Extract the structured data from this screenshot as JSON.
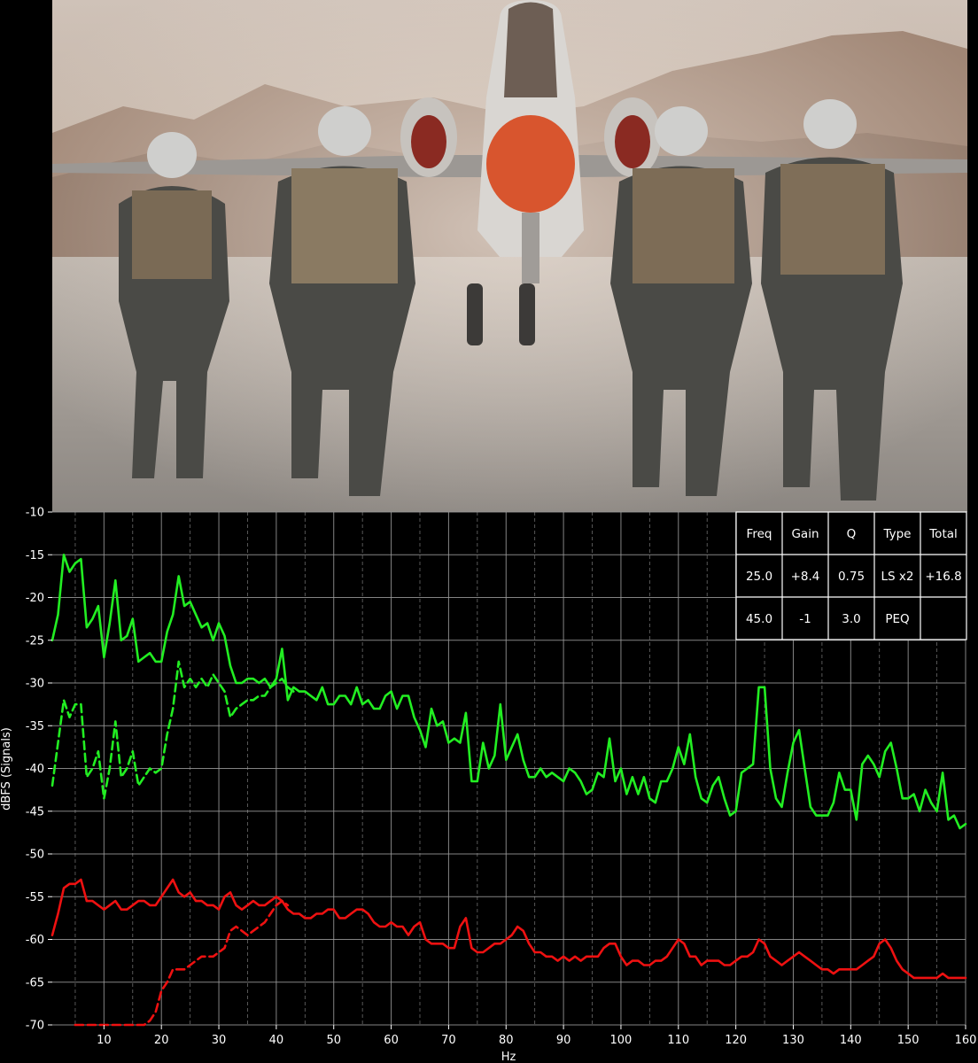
{
  "background_image": {
    "description_icon": "photo-icon"
  },
  "chart_data": {
    "type": "line",
    "xlabel": "Hz",
    "ylabel": "dBFS (Signals)",
    "xlim": [
      1,
      160
    ],
    "ylim": [
      -70,
      -10
    ],
    "x_ticks": [
      10,
      20,
      30,
      40,
      50,
      60,
      70,
      80,
      90,
      100,
      110,
      120,
      130,
      140,
      150,
      160
    ],
    "y_ticks": [
      -10,
      -15,
      -20,
      -25,
      -30,
      -35,
      -40,
      -45,
      -50,
      -55,
      -60,
      -65,
      -70
    ],
    "grid": true,
    "colors": {
      "green": "#22ee22",
      "red": "#ee1111",
      "background": "#000000",
      "grid": "#9a9a9a"
    },
    "series": [
      {
        "color": "green",
        "style": "solid",
        "x": [
          1,
          2,
          3,
          4,
          5,
          6,
          7,
          8,
          9,
          10,
          11,
          12,
          13,
          14,
          15,
          16,
          17,
          18,
          19,
          20,
          21,
          22,
          23,
          24,
          25,
          26,
          27,
          28,
          29,
          30,
          31,
          32,
          33,
          34,
          35,
          36,
          37,
          38,
          39,
          40,
          41,
          42,
          43,
          44,
          45,
          46,
          47,
          48,
          49,
          50,
          51,
          52,
          53,
          54,
          55,
          56,
          57,
          58,
          59,
          60,
          61,
          62,
          63,
          64,
          65,
          66,
          67,
          68,
          69,
          70,
          71,
          72,
          73,
          74,
          75,
          76,
          77,
          78,
          79,
          80,
          81,
          82,
          83,
          84,
          85,
          86,
          87,
          88,
          89,
          90,
          91,
          92,
          93,
          94,
          95,
          96,
          97,
          98,
          99,
          100,
          101,
          102,
          103,
          104,
          105,
          106,
          107,
          108,
          109,
          110,
          111,
          112,
          113,
          114,
          115,
          116,
          117,
          118,
          119,
          120,
          121,
          122,
          123,
          124,
          125,
          126,
          127,
          128,
          129,
          130,
          131,
          132,
          133,
          134,
          135,
          136,
          137,
          138,
          139,
          140,
          141,
          142,
          143,
          144,
          145,
          146,
          147,
          148,
          149,
          150,
          151,
          152,
          153,
          154,
          155,
          156,
          157,
          158,
          159,
          160
        ],
        "y": [
          -25,
          -22,
          -15,
          -17,
          -16,
          -15.5,
          -23.5,
          -22.5,
          -21,
          -27,
          -23,
          -18,
          -25,
          -24.5,
          -22.5,
          -27.5,
          -27,
          -26.5,
          -27.5,
          -27.5,
          -24,
          -22,
          -17.5,
          -21,
          -20.5,
          -22,
          -23.5,
          -23,
          -25,
          -23,
          -24.5,
          -28,
          -30,
          -30,
          -29.5,
          -29.5,
          -30,
          -29.5,
          -30.5,
          -29.5,
          -26,
          -32,
          -30.5,
          -31,
          -31,
          -31.5,
          -32,
          -30.5,
          -32.5,
          -32.5,
          -31.5,
          -31.5,
          -32.5,
          -30.5,
          -32.5,
          -32,
          -33,
          -33,
          -31.5,
          -31,
          -33,
          -31.5,
          -31.5,
          -34,
          -35.5,
          -37.5,
          -33,
          -35,
          -34.5,
          -37,
          -36.5,
          -37,
          -33.5,
          -41.5,
          -41.5,
          -37,
          -40,
          -38.5,
          -32.5,
          -39,
          -37.5,
          -36,
          -39,
          -41,
          -41,
          -40,
          -41,
          -40.5,
          -41,
          -41.5,
          -40,
          -40.5,
          -41.5,
          -43,
          -42.5,
          -40.5,
          -41,
          -36.5,
          -41.5,
          -40,
          -43,
          -41,
          -43,
          -41,
          -43.5,
          -44,
          -41.5,
          -41.5,
          -40,
          -37.5,
          -39.5,
          -36,
          -41,
          -43.5,
          -44,
          -42,
          -41,
          -43.5,
          -45.5,
          -45,
          -40.5,
          -40,
          -39.5,
          -30.5,
          -30.5,
          -40,
          -43.5,
          -44.5,
          -40.5,
          -37,
          -35.5,
          -40,
          -44.5,
          -45.5,
          -45.5,
          -45.5,
          -44,
          -40.5,
          -42.5,
          -42.5,
          -46,
          -39.5,
          -38.5,
          -39.5,
          -41,
          -38,
          -37,
          -40,
          -43.5,
          -43.5,
          -43,
          -45,
          -42.5,
          -44,
          -45,
          -40.5,
          -46,
          -45.5,
          -47,
          -46.5
        ]
      },
      {
        "color": "green",
        "style": "dashed",
        "x": [
          1,
          2,
          3,
          4,
          5,
          6,
          7,
          8,
          9,
          10,
          11,
          12,
          13,
          14,
          15,
          16,
          17,
          18,
          19,
          20,
          21,
          22,
          23,
          24,
          25,
          26,
          27,
          28,
          29,
          30,
          31,
          32,
          33,
          34,
          35,
          36,
          37,
          38,
          39,
          40,
          41,
          42,
          43
        ],
        "y": [
          -42,
          -37,
          -32,
          -34,
          -32.5,
          -32.5,
          -41,
          -40,
          -38,
          -43.5,
          -40,
          -34.5,
          -41,
          -40,
          -38,
          -42,
          -41,
          -40,
          -40.5,
          -40,
          -36,
          -33,
          -27.5,
          -30.5,
          -29.5,
          -30.5,
          -29.5,
          -30.5,
          -29,
          -30,
          -31,
          -34,
          -33,
          -32.5,
          -32,
          -32,
          -31.5,
          -31.5,
          -30.5,
          -30,
          -29.5,
          -30.5,
          -31
        ]
      },
      {
        "color": "red",
        "style": "solid",
        "x": [
          1,
          2,
          3,
          4,
          5,
          6,
          7,
          8,
          9,
          10,
          11,
          12,
          13,
          14,
          15,
          16,
          17,
          18,
          19,
          20,
          21,
          22,
          23,
          24,
          25,
          26,
          27,
          28,
          29,
          30,
          31,
          32,
          33,
          34,
          35,
          36,
          37,
          38,
          39,
          40,
          41,
          42,
          43,
          44,
          45,
          46,
          47,
          48,
          49,
          50,
          51,
          52,
          53,
          54,
          55,
          56,
          57,
          58,
          59,
          60,
          61,
          62,
          63,
          64,
          65,
          66,
          67,
          68,
          69,
          70,
          71,
          72,
          73,
          74,
          75,
          76,
          77,
          78,
          79,
          80,
          81,
          82,
          83,
          84,
          85,
          86,
          87,
          88,
          89,
          90,
          91,
          92,
          93,
          94,
          95,
          96,
          97,
          98,
          99,
          100,
          101,
          102,
          103,
          104,
          105,
          106,
          107,
          108,
          109,
          110,
          111,
          112,
          113,
          114,
          115,
          116,
          117,
          118,
          119,
          120,
          121,
          122,
          123,
          124,
          125,
          126,
          127,
          128,
          129,
          130,
          131,
          132,
          133,
          134,
          135,
          136,
          137,
          138,
          139,
          140,
          141,
          142,
          143,
          144,
          145,
          146,
          147,
          148,
          149,
          150,
          151,
          152,
          153,
          154,
          155,
          156,
          157,
          158,
          159,
          160
        ],
        "y": [
          -59.5,
          -57,
          -54,
          -53.5,
          -53.5,
          -53,
          -55.5,
          -55.5,
          -56,
          -56.5,
          -56,
          -55.5,
          -56.5,
          -56.5,
          -56,
          -55.5,
          -55.5,
          -56,
          -56,
          -55,
          -54,
          -53,
          -54.5,
          -55,
          -54.5,
          -55.5,
          -55.5,
          -56,
          -56,
          -56.5,
          -55,
          -54.5,
          -56,
          -56.5,
          -56,
          -55.5,
          -56,
          -56,
          -55.5,
          -55,
          -55.5,
          -56.5,
          -57,
          -57,
          -57.5,
          -57.5,
          -57,
          -57,
          -56.5,
          -56.5,
          -57.5,
          -57.5,
          -57,
          -56.5,
          -56.5,
          -57,
          -58,
          -58.5,
          -58.5,
          -58,
          -58.5,
          -58.5,
          -59.5,
          -58.5,
          -58,
          -60,
          -60.5,
          -60.5,
          -60.5,
          -61,
          -61,
          -58.5,
          -57.5,
          -61,
          -61.5,
          -61.5,
          -61,
          -60.5,
          -60.5,
          -60,
          -59.5,
          -58.5,
          -59,
          -60.5,
          -61.5,
          -61.5,
          -62,
          -62,
          -62.5,
          -62,
          -62.5,
          -62,
          -62.5,
          -62,
          -62,
          -62,
          -61,
          -60.5,
          -60.5,
          -62,
          -63,
          -62.5,
          -62.5,
          -63,
          -63,
          -62.5,
          -62.5,
          -62,
          -61,
          -60,
          -60.5,
          -62,
          -62,
          -63,
          -62.5,
          -62.5,
          -62.5,
          -63,
          -63,
          -62.5,
          -62,
          -62,
          -61.5,
          -60,
          -60.5,
          -62,
          -62.5,
          -63,
          -62.5,
          -62,
          -61.5,
          -62,
          -62.5,
          -63,
          -63.5,
          -63.5,
          -64,
          -63.5,
          -63.5,
          -63.5,
          -63.5,
          -63,
          -62.5,
          -62,
          -60.5,
          -60,
          -61,
          -62.5,
          -63.5,
          -64,
          -64.5,
          -64.5,
          -64.5,
          -64.5,
          -64.5,
          -64,
          -64.5,
          -64.5,
          -64.5,
          -64.5
        ]
      },
      {
        "color": "red",
        "style": "dashed",
        "x": [
          5,
          6,
          16,
          17,
          18,
          19,
          20,
          21,
          22,
          23,
          24,
          25,
          26,
          27,
          28,
          29,
          30,
          31,
          32,
          33,
          34,
          35,
          36,
          37,
          38,
          39,
          40,
          41,
          42
        ],
        "y": [
          -70,
          -70,
          -70,
          -70,
          -69.5,
          -68.5,
          -66,
          -65,
          -63.5,
          -63.5,
          -63.5,
          -63,
          -62.5,
          -62,
          -62,
          -62,
          -61.5,
          -61,
          -59,
          -58.5,
          -59,
          -59.5,
          -59,
          -58.5,
          -58,
          -57,
          -56,
          -55.5,
          -56
        ]
      }
    ],
    "table": {
      "headers": [
        "Freq",
        "Gain",
        "Q",
        "Type",
        "Total"
      ],
      "rows": [
        [
          "25.0",
          "+8.4",
          "0.75",
          "LS x2",
          "+16.8"
        ],
        [
          "45.0",
          "-1",
          "3.0",
          "PEQ",
          ""
        ]
      ]
    }
  }
}
